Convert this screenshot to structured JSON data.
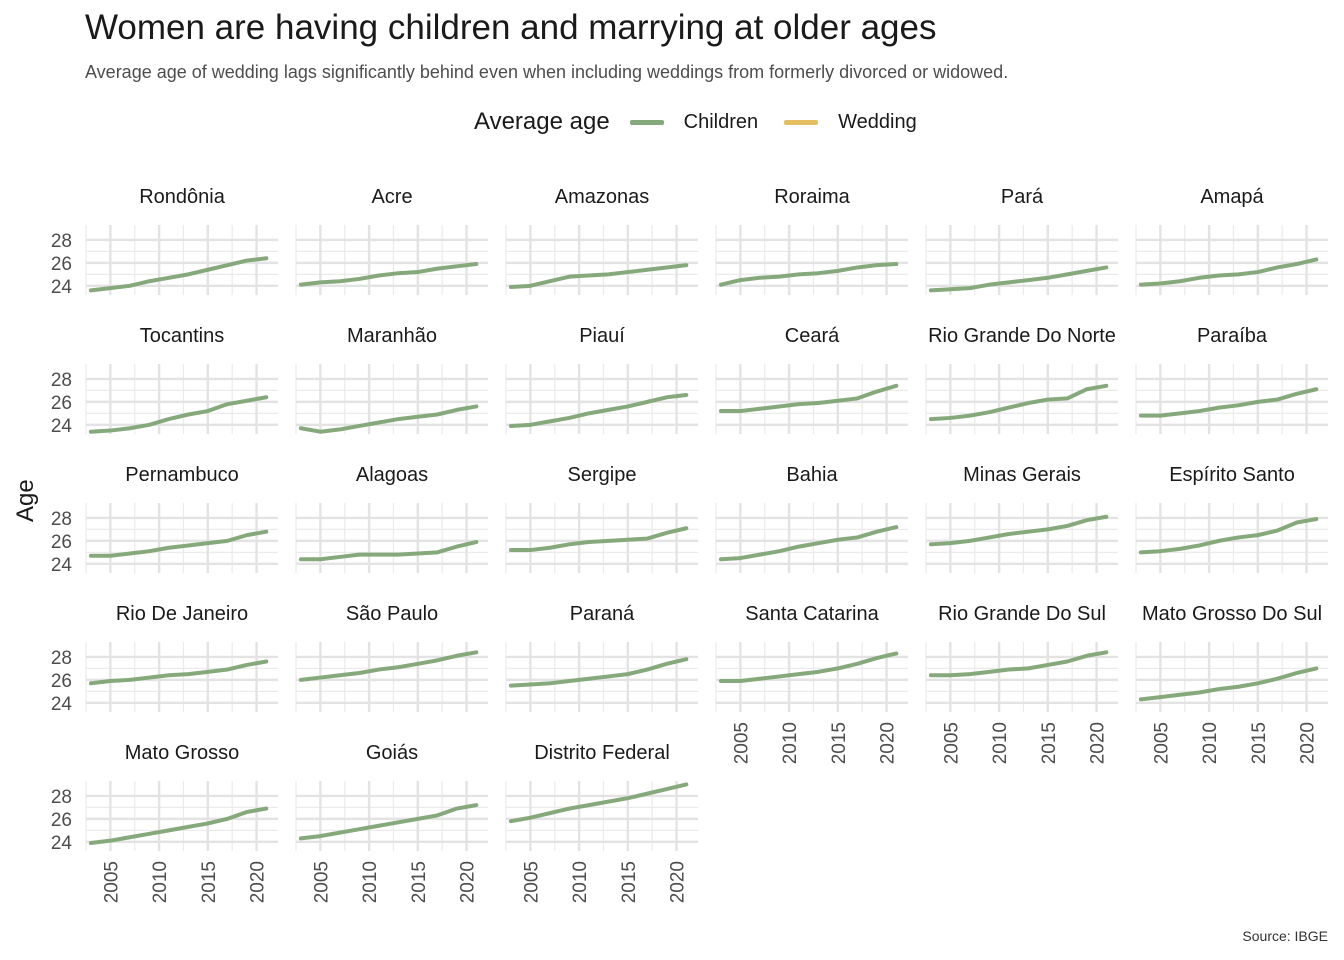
{
  "title": "Women are having children and marrying at older ages",
  "subtitle": "Average age of wedding lags significantly behind even when including weddings from formerly divorced or widowed.",
  "caption": "Source: IBGE",
  "colors": {
    "Children": "#86a97c",
    "Wedding": "#e3bf61"
  },
  "chart_data": {
    "type": "line",
    "facet_layout": "wrap",
    "xlabel": "",
    "ylabel": "Age",
    "xlim": [
      2002.5,
      2022.2
    ],
    "ylim": [
      23.2,
      29.3
    ],
    "x_ticks": [
      2005,
      2010,
      2015,
      2020
    ],
    "y_ticks": [
      24,
      26,
      28
    ],
    "grid": true,
    "legend": {
      "title": "Average age",
      "position": "top",
      "entries": [
        "Children",
        "Wedding"
      ]
    },
    "x": [
      2003,
      2005,
      2007,
      2009,
      2011,
      2013,
      2015,
      2017,
      2019,
      2021
    ],
    "facets": [
      {
        "name": "Rondônia",
        "series": [
          {
            "name": "Children",
            "values": [
              23.6,
              23.8,
              24.0,
              24.4,
              24.7,
              25.0,
              25.4,
              25.8,
              26.2,
              26.4
            ]
          },
          {
            "name": "Wedding",
            "values": []
          }
        ]
      },
      {
        "name": "Acre",
        "series": [
          {
            "name": "Children",
            "values": [
              24.1,
              24.3,
              24.4,
              24.6,
              24.9,
              25.1,
              25.2,
              25.5,
              25.7,
              25.9
            ]
          },
          {
            "name": "Wedding",
            "values": []
          }
        ]
      },
      {
        "name": "Amazonas",
        "series": [
          {
            "name": "Children",
            "values": [
              23.9,
              24.0,
              24.4,
              24.8,
              24.9,
              25.0,
              25.2,
              25.4,
              25.6,
              25.8
            ]
          },
          {
            "name": "Wedding",
            "values": []
          }
        ]
      },
      {
        "name": "Roraima",
        "series": [
          {
            "name": "Children",
            "values": [
              24.1,
              24.5,
              24.7,
              24.8,
              25.0,
              25.1,
              25.3,
              25.6,
              25.8,
              25.9
            ]
          },
          {
            "name": "Wedding",
            "values": []
          }
        ]
      },
      {
        "name": "Pará",
        "series": [
          {
            "name": "Children",
            "values": [
              23.6,
              23.7,
              23.8,
              24.1,
              24.3,
              24.5,
              24.7,
              25.0,
              25.3,
              25.6
            ]
          },
          {
            "name": "Wedding",
            "values": []
          }
        ]
      },
      {
        "name": "Amapá",
        "series": [
          {
            "name": "Children",
            "values": [
              24.1,
              24.2,
              24.4,
              24.7,
              24.9,
              25.0,
              25.2,
              25.6,
              25.9,
              26.3
            ]
          },
          {
            "name": "Wedding",
            "values": []
          }
        ]
      },
      {
        "name": "Tocantins",
        "series": [
          {
            "name": "Children",
            "values": [
              23.4,
              23.5,
              23.7,
              24.0,
              24.5,
              24.9,
              25.2,
              25.8,
              26.1,
              26.4
            ]
          },
          {
            "name": "Wedding",
            "values": []
          }
        ]
      },
      {
        "name": "Maranhão",
        "series": [
          {
            "name": "Children",
            "values": [
              23.7,
              23.4,
              23.6,
              23.9,
              24.2,
              24.5,
              24.7,
              24.9,
              25.3,
              25.6
            ]
          },
          {
            "name": "Wedding",
            "values": []
          }
        ]
      },
      {
        "name": "Piauí",
        "series": [
          {
            "name": "Children",
            "values": [
              23.9,
              24.0,
              24.3,
              24.6,
              25.0,
              25.3,
              25.6,
              26.0,
              26.4,
              26.6
            ]
          },
          {
            "name": "Wedding",
            "values": []
          }
        ]
      },
      {
        "name": "Ceará",
        "series": [
          {
            "name": "Children",
            "values": [
              25.2,
              25.2,
              25.4,
              25.6,
              25.8,
              25.9,
              26.1,
              26.3,
              26.9,
              27.4
            ]
          },
          {
            "name": "Wedding",
            "values": []
          }
        ]
      },
      {
        "name": "Rio Grande Do Norte",
        "series": [
          {
            "name": "Children",
            "values": [
              24.5,
              24.6,
              24.8,
              25.1,
              25.5,
              25.9,
              26.2,
              26.3,
              27.1,
              27.4
            ]
          },
          {
            "name": "Wedding",
            "values": []
          }
        ]
      },
      {
        "name": "Paraíba",
        "series": [
          {
            "name": "Children",
            "values": [
              24.8,
              24.8,
              25.0,
              25.2,
              25.5,
              25.7,
              26.0,
              26.2,
              26.7,
              27.1
            ]
          },
          {
            "name": "Wedding",
            "values": []
          }
        ]
      },
      {
        "name": "Pernambuco",
        "series": [
          {
            "name": "Children",
            "values": [
              24.7,
              24.7,
              24.9,
              25.1,
              25.4,
              25.6,
              25.8,
              26.0,
              26.5,
              26.8
            ]
          },
          {
            "name": "Wedding",
            "values": []
          }
        ]
      },
      {
        "name": "Alagoas",
        "series": [
          {
            "name": "Children",
            "values": [
              24.4,
              24.4,
              24.6,
              24.8,
              24.8,
              24.8,
              24.9,
              25.0,
              25.5,
              25.9
            ]
          },
          {
            "name": "Wedding",
            "values": []
          }
        ]
      },
      {
        "name": "Sergipe",
        "series": [
          {
            "name": "Children",
            "values": [
              25.2,
              25.2,
              25.4,
              25.7,
              25.9,
              26.0,
              26.1,
              26.2,
              26.7,
              27.1
            ]
          },
          {
            "name": "Wedding",
            "values": []
          }
        ]
      },
      {
        "name": "Bahia",
        "series": [
          {
            "name": "Children",
            "values": [
              24.4,
              24.5,
              24.8,
              25.1,
              25.5,
              25.8,
              26.1,
              26.3,
              26.8,
              27.2
            ]
          },
          {
            "name": "Wedding",
            "values": []
          }
        ]
      },
      {
        "name": "Minas Gerais",
        "series": [
          {
            "name": "Children",
            "values": [
              25.7,
              25.8,
              26.0,
              26.3,
              26.6,
              26.8,
              27.0,
              27.3,
              27.8,
              28.1
            ]
          },
          {
            "name": "Wedding",
            "values": []
          }
        ]
      },
      {
        "name": "Espírito Santo",
        "series": [
          {
            "name": "Children",
            "values": [
              25.0,
              25.1,
              25.3,
              25.6,
              26.0,
              26.3,
              26.5,
              26.9,
              27.6,
              27.9
            ]
          },
          {
            "name": "Wedding",
            "values": []
          }
        ]
      },
      {
        "name": "Rio De Janeiro",
        "series": [
          {
            "name": "Children",
            "values": [
              25.7,
              25.9,
              26.0,
              26.2,
              26.4,
              26.5,
              26.7,
              26.9,
              27.3,
              27.6
            ]
          },
          {
            "name": "Wedding",
            "values": []
          }
        ]
      },
      {
        "name": "São Paulo",
        "series": [
          {
            "name": "Children",
            "values": [
              26.0,
              26.2,
              26.4,
              26.6,
              26.9,
              27.1,
              27.4,
              27.7,
              28.1,
              28.4
            ]
          },
          {
            "name": "Wedding",
            "values": []
          }
        ]
      },
      {
        "name": "Paraná",
        "series": [
          {
            "name": "Children",
            "values": [
              25.5,
              25.6,
              25.7,
              25.9,
              26.1,
              26.3,
              26.5,
              26.9,
              27.4,
              27.8
            ]
          },
          {
            "name": "Wedding",
            "values": []
          }
        ]
      },
      {
        "name": "Santa Catarina",
        "series": [
          {
            "name": "Children",
            "values": [
              25.9,
              25.9,
              26.1,
              26.3,
              26.5,
              26.7,
              27.0,
              27.4,
              27.9,
              28.3
            ]
          },
          {
            "name": "Wedding",
            "values": []
          }
        ]
      },
      {
        "name": "Rio Grande Do Sul",
        "series": [
          {
            "name": "Children",
            "values": [
              26.4,
              26.4,
              26.5,
              26.7,
              26.9,
              27.0,
              27.3,
              27.6,
              28.1,
              28.4
            ]
          },
          {
            "name": "Wedding",
            "values": []
          }
        ]
      },
      {
        "name": "Mato Grosso Do Sul",
        "series": [
          {
            "name": "Children",
            "values": [
              24.3,
              24.5,
              24.7,
              24.9,
              25.2,
              25.4,
              25.7,
              26.1,
              26.6,
              27.0
            ]
          },
          {
            "name": "Wedding",
            "values": []
          }
        ]
      },
      {
        "name": "Mato Grosso",
        "series": [
          {
            "name": "Children",
            "values": [
              23.9,
              24.1,
              24.4,
              24.7,
              25.0,
              25.3,
              25.6,
              26.0,
              26.6,
              26.9
            ]
          },
          {
            "name": "Wedding",
            "values": []
          }
        ]
      },
      {
        "name": "Goiás",
        "series": [
          {
            "name": "Children",
            "values": [
              24.3,
              24.5,
              24.8,
              25.1,
              25.4,
              25.7,
              26.0,
              26.3,
              26.9,
              27.2
            ]
          },
          {
            "name": "Wedding",
            "values": []
          }
        ]
      },
      {
        "name": "Distrito Federal",
        "series": [
          {
            "name": "Children",
            "values": [
              25.8,
              26.1,
              26.5,
              26.9,
              27.2,
              27.5,
              27.8,
              28.2,
              28.6,
              29.0
            ]
          },
          {
            "name": "Wedding",
            "values": []
          }
        ]
      }
    ]
  }
}
